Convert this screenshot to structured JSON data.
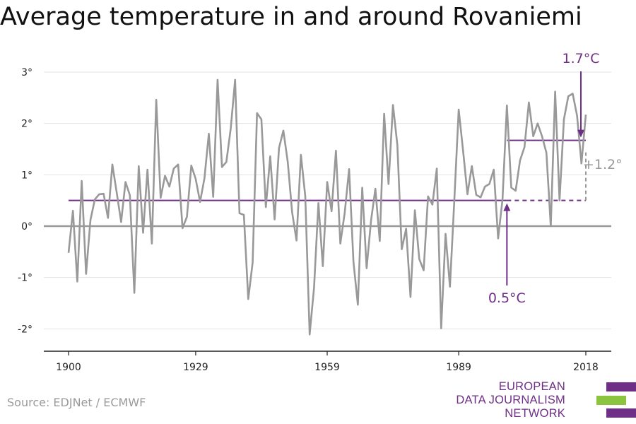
{
  "source": "Source: EDJNet / ECMWF",
  "logo": {
    "lines": [
      "EUROPEAN",
      "DATA JOURNALISM",
      "NETWORK"
    ],
    "colors": [
      "#6f2f86",
      "#8bc53f",
      "#6f2f86"
    ]
  },
  "chart_data": {
    "type": "line",
    "title": "Average temperature in and around Rovaniemi",
    "xlabel": "",
    "ylabel": "",
    "xlim": [
      1900,
      2018
    ],
    "ylim": [
      -2.4,
      3.2
    ],
    "x_ticks": [
      1900,
      1929,
      1959,
      1989,
      2018
    ],
    "y_ticks": [
      3,
      2,
      1,
      0,
      -1,
      -2
    ],
    "y_tick_labels": [
      "3°",
      "2°",
      "1°",
      "0°",
      "-1°",
      "-2°"
    ],
    "grid": true,
    "colors": {
      "series": "#999999",
      "accent": "#6f2f86",
      "zero_line": "#999999",
      "axis": "#222222"
    },
    "series": [
      {
        "x_start": 1900,
        "values": [
          -0.52,
          0.3,
          -1.08,
          0.88,
          -0.93,
          0.12,
          0.52,
          0.62,
          0.63,
          0.16,
          1.2,
          0.65,
          0.08,
          0.86,
          0.6,
          -1.3,
          1.17,
          -0.13,
          1.1,
          -0.34,
          2.46,
          0.55,
          0.98,
          0.77,
          1.12,
          1.2,
          -0.04,
          0.18,
          1.18,
          0.92,
          0.47,
          0.93,
          1.8,
          0.57,
          2.85,
          1.15,
          1.25,
          1.9,
          2.85,
          0.25,
          0.22,
          -1.42,
          -0.71,
          2.2,
          2.08,
          0.37,
          1.36,
          0.13,
          1.52,
          1.86,
          1.25,
          0.27,
          -0.28,
          1.39,
          0.58,
          -2.11,
          -1.2,
          0.45,
          -0.78,
          0.86,
          0.29,
          1.47,
          -0.34,
          0.26,
          1.11,
          -0.7,
          -1.53,
          0.75,
          -0.82,
          0.1,
          0.73,
          -0.29,
          2.19,
          0.82,
          2.36,
          1.58,
          -0.45,
          -0.05,
          -1.38,
          0.31,
          -0.64,
          -0.86,
          0.58,
          0.42,
          1.12,
          -1.99,
          -0.15,
          -1.18,
          0.5,
          2.27,
          1.47,
          0.62,
          1.17,
          0.61,
          0.56,
          0.77,
          0.82,
          1.1,
          -0.24,
          0.52,
          2.35,
          0.75,
          0.69,
          1.28,
          1.54,
          2.41,
          1.75,
          2.0,
          1.75,
          1.43,
          0.0,
          2.62,
          0.5,
          2.08,
          2.53,
          2.58,
          2.15,
          1.22,
          2.17
        ]
      }
    ],
    "reference_lines": [
      {
        "label": "0.5°C",
        "value": 0.5,
        "x_from": 1900,
        "x_to": 2018,
        "solid_until": 2000
      },
      {
        "label": "1.7°C",
        "value": 1.67,
        "x_from": 2000,
        "x_to": 2018
      }
    ],
    "annotations": [
      {
        "text": "1.7°C",
        "x": 2018,
        "y": 1.67,
        "color": "#6f2f86"
      },
      {
        "text": "0.5°C",
        "x": 2000,
        "y": 0.5,
        "color": "#6f2f86"
      },
      {
        "text": "+1.2°",
        "x": 2018,
        "y": 1.1,
        "color": "#999999"
      }
    ]
  }
}
